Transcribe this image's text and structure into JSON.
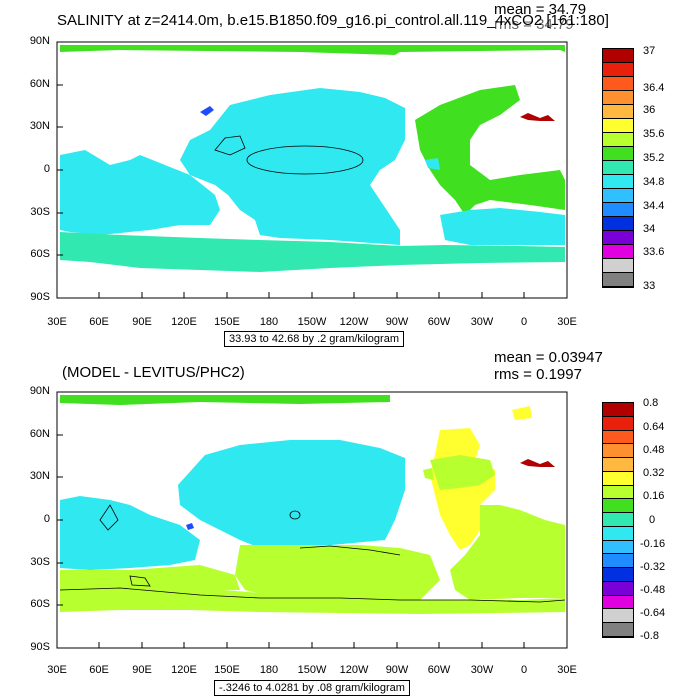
{
  "panel1": {
    "title": "SALINITY at z=2414.0m, b.e15.B1850.f09_g16.pi_control.all.119_4xCO2 [161:180]",
    "mean": "mean = 34.79",
    "rms": "rms = 34.79",
    "range": "33.93 to 42.68 by .2 gram/kilogram"
  },
  "panel2": {
    "title": "(MODEL - LEVITUS/PHC2)",
    "mean": "mean = 0.03947",
    "rms": "rms = 0.1997",
    "range": "-.3246 to 4.0281 by .08 gram/kilogram"
  },
  "lat_labels": [
    "90N",
    "60N",
    "30N",
    "0",
    "30S",
    "60S",
    "90S"
  ],
  "lon_labels": [
    "30E",
    "60E",
    "90E",
    "120E",
    "150E",
    "180",
    "150W",
    "120W",
    "90W",
    "60W",
    "30W",
    "0",
    "30E"
  ],
  "colorbar1": {
    "labels": [
      "37",
      "36.4",
      "36",
      "35.6",
      "35.2",
      "34.8",
      "34.4",
      "34",
      "33.6",
      "33"
    ],
    "colors": [
      "#b00000",
      "#e8200c",
      "#ff5a1e",
      "#ff9030",
      "#ffb840",
      "#ffff30",
      "#b8ff30",
      "#40e020",
      "#30e8b0",
      "#30e8f0",
      "#30c0ff",
      "#1f8cff",
      "#0030e0",
      "#7a00d8",
      "#e000e0",
      "#d0d0d0",
      "#808080"
    ]
  },
  "colorbar2": {
    "labels": [
      "0.8",
      "0.64",
      "0.48",
      "0.32",
      "0.16",
      "0",
      "-0.16",
      "-0.32",
      "-0.48",
      "-0.64",
      "-0.8"
    ],
    "colors": [
      "#b00000",
      "#e8200c",
      "#ff5a1e",
      "#ff9030",
      "#ffb840",
      "#ffff30",
      "#b8ff30",
      "#40e020",
      "#30e8b0",
      "#30e8f0",
      "#30c0ff",
      "#1f8cff",
      "#0030e0",
      "#7a00d8",
      "#e000e0",
      "#d0d0d0",
      "#808080"
    ]
  },
  "colors": {
    "cyan": "#30e8f0",
    "light_cyan": "#30c0ff",
    "green": "#40e020",
    "lime": "#b8ff30",
    "yellow": "#ffff30",
    "dark_red": "#b00000",
    "blue": "#1f4cff"
  }
}
